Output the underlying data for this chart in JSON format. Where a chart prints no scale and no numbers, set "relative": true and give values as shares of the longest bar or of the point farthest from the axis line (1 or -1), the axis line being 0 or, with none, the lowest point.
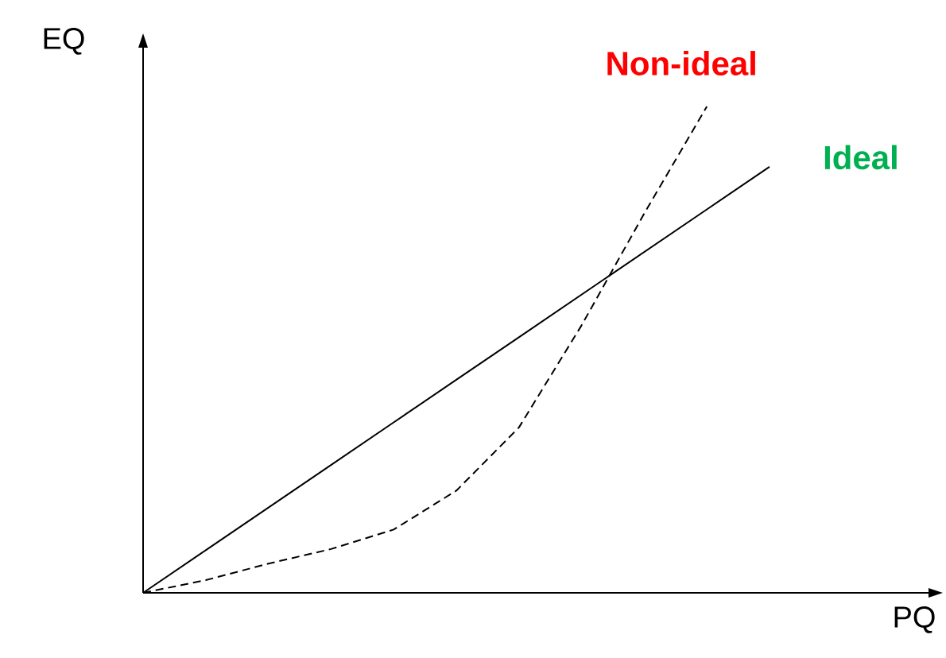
{
  "chart_data": {
    "type": "line",
    "relative": true,
    "xlabel": "PQ",
    "ylabel": "EQ",
    "marker": "none",
    "categories": [
      null,
      null,
      null,
      null,
      null,
      null,
      null,
      null,
      null,
      null,
      null
    ],
    "series": [
      {
        "name": "Ideal",
        "color": "#000000",
        "line_style": "solid",
        "values": [
          0,
          0.0876,
          0.1752,
          0.2628,
          0.3504,
          0.438,
          0.5256,
          0.6132,
          0.7008,
          0.7884,
          0.876
        ]
      },
      {
        "name": "Non-ideal",
        "color": "#000000",
        "line_style": "dashed",
        "values": [
          0,
          0.026,
          0.06,
          0.09,
          0.13,
          0.21,
          0.34,
          0.55,
          0.78,
          1.0,
          null
        ]
      }
    ]
  }
}
